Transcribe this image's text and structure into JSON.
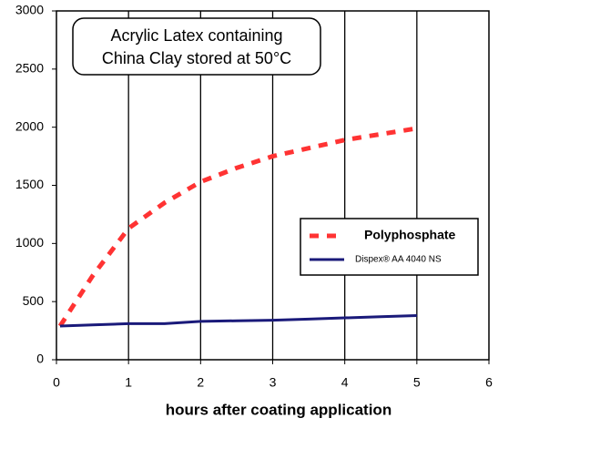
{
  "chart_data": {
    "type": "line",
    "title_lines": [
      "Acrylic Latex containing",
      "China Clay stored at 50°C"
    ],
    "x_label": "hours after coating application",
    "x": [
      0.05,
      0.5,
      1,
      1.5,
      2,
      2.5,
      3,
      3.5,
      4,
      4.5,
      5
    ],
    "series": [
      {
        "name": "Polyphosphate",
        "color": "#ff3333",
        "dashed": true,
        "values": [
          290,
          720,
          1130,
          1350,
          1530,
          1650,
          1750,
          1820,
          1890,
          1940,
          1990
        ]
      },
      {
        "name": "Dispex® AA 4040 NS",
        "color": "#1a1a7a",
        "dashed": false,
        "values": [
          290,
          300,
          310,
          310,
          330,
          335,
          340,
          350,
          360,
          370,
          380
        ]
      }
    ],
    "xlim": [
      0,
      6
    ],
    "ylim": [
      0,
      3000
    ],
    "xticks": [
      0,
      1,
      2,
      3,
      4,
      5,
      6
    ],
    "yticks": [
      0,
      500,
      1000,
      1500,
      2000,
      2500,
      3000
    ],
    "grid": "x"
  }
}
